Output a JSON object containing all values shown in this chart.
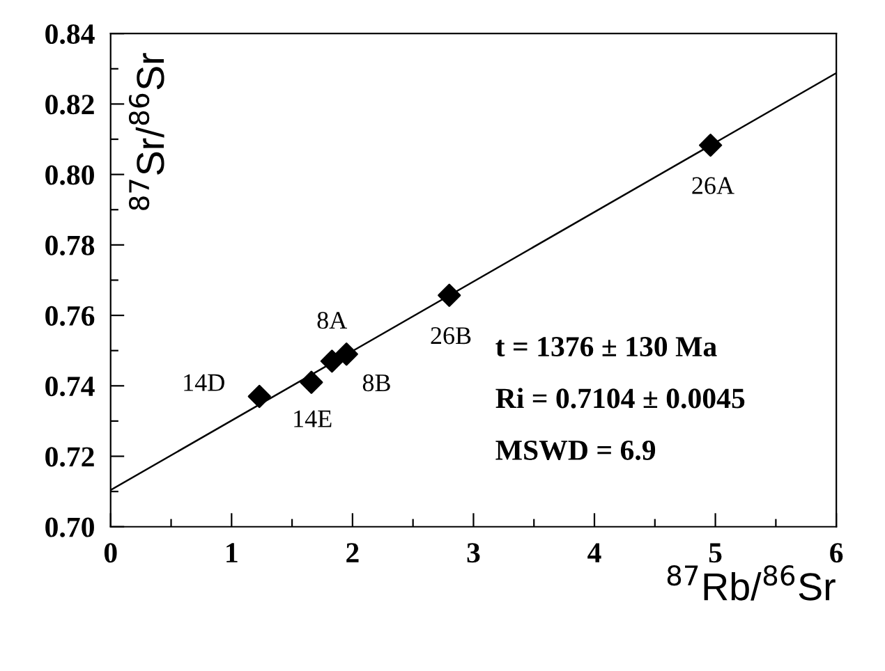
{
  "chart_data": {
    "type": "scatter",
    "xlabel": "$^{87}$Rb/$^{86}$Sr",
    "ylabel": "$^{87}$Sr/$^{86}$Sr",
    "series": [
      {
        "color": "#000000",
        "marker": "diamond",
        "x": [
          1.23,
          1.66,
          1.83,
          1.95,
          2.8,
          4.96
        ],
        "values": [
          0.737,
          0.741,
          0.747,
          0.749,
          0.7657,
          0.8083
        ]
      },
      {
        "type": "line",
        "color": "#000000",
        "marker": "none",
        "line_style": "solid",
        "x": [
          0,
          6
        ],
        "values": [
          0.7104,
          0.8288
        ]
      }
    ],
    "annotations": [
      {
        "text": "14D",
        "x": 1.23,
        "y": 0.737
      },
      {
        "text": "14E",
        "x": 1.66,
        "y": 0.741
      },
      {
        "text": "8A",
        "x": 1.83,
        "y": 0.747
      },
      {
        "text": "8B",
        "x": 1.95,
        "y": 0.749
      },
      {
        "text": "26B",
        "x": 2.8,
        "y": 0.7657
      },
      {
        "text": "26A",
        "x": 4.96,
        "y": 0.8083
      },
      "t = 1376 ± 130 Ma",
      "Ri = 0.7104 ± 0.0045",
      "MSWD = 6.9"
    ],
    "xlim": [
      0,
      6
    ],
    "ylim": [
      0.7,
      0.84
    ],
    "xticks": [
      0,
      {
        "value": 0.5,
        "label": null
      },
      1,
      {
        "value": 1.5,
        "label": null
      },
      2,
      {
        "value": 2.5,
        "label": null
      },
      3,
      {
        "value": 3.5,
        "label": null
      },
      4,
      {
        "value": 4.5,
        "label": null
      },
      5,
      {
        "value": 5.5,
        "label": null
      },
      6
    ],
    "yticks": [
      {
        "value": 0.7,
        "label": "0.70"
      },
      {
        "value": 0.71,
        "label": null
      },
      {
        "value": 0.72,
        "label": "0.72"
      },
      {
        "value": 0.73,
        "label": null
      },
      {
        "value": 0.74,
        "label": "0.74"
      },
      {
        "value": 0.75,
        "label": null
      },
      {
        "value": 0.76,
        "label": "0.76"
      },
      {
        "value": 0.77,
        "label": null
      },
      {
        "value": 0.78,
        "label": "0.78"
      },
      {
        "value": 0.79,
        "label": null
      },
      {
        "value": 0.8,
        "label": "0.80"
      },
      {
        "value": 0.81,
        "label": null
      },
      {
        "value": 0.82,
        "label": "0.82"
      },
      {
        "value": 0.83,
        "label": null
      },
      {
        "value": 0.84,
        "label": "0.84"
      }
    ],
    "grid": false,
    "legend": false
  }
}
